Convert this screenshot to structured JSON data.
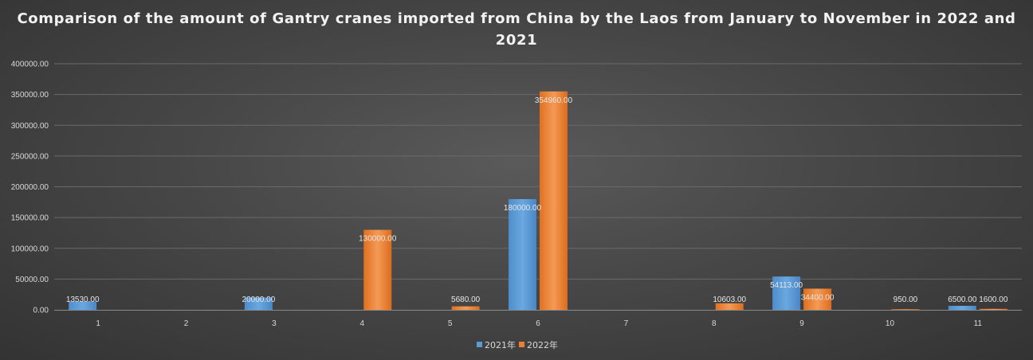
{
  "chart_data": {
    "type": "bar",
    "title": "Comparison of the amount of Gantry cranes imported from China by the Laos from January to November in 2022 and 2021",
    "xlabel": "",
    "ylabel": "",
    "categories": [
      "1",
      "2",
      "3",
      "4",
      "5",
      "6",
      "7",
      "8",
      "9",
      "10",
      "11"
    ],
    "series": [
      {
        "name": "2021年",
        "color": "#5b9bd5",
        "values": [
          13530,
          null,
          20000,
          null,
          null,
          180000,
          null,
          null,
          54113,
          null,
          6500
        ],
        "labels": [
          "13530.00",
          "",
          "20000.00",
          "",
          "",
          "180000.00",
          "",
          "",
          "54113.00",
          "",
          "6500.00"
        ]
      },
      {
        "name": "2022年",
        "color": "#ed7d31",
        "values": [
          null,
          null,
          null,
          130000,
          5680,
          354960,
          null,
          10603,
          34400,
          950,
          1600
        ],
        "labels": [
          "",
          "",
          "",
          "130000.00",
          "5680.00",
          "354960.00",
          "",
          "10603.00",
          "34400.00",
          "950.00",
          "1600.00"
        ]
      }
    ],
    "ylim": [
      0,
      400000
    ],
    "yticks": [
      "0.00",
      "50000.00",
      "100000.00",
      "150000.00",
      "200000.00",
      "250000.00",
      "300000.00",
      "350000.00",
      "400000.00"
    ],
    "grid": true,
    "legend": "bottom"
  }
}
